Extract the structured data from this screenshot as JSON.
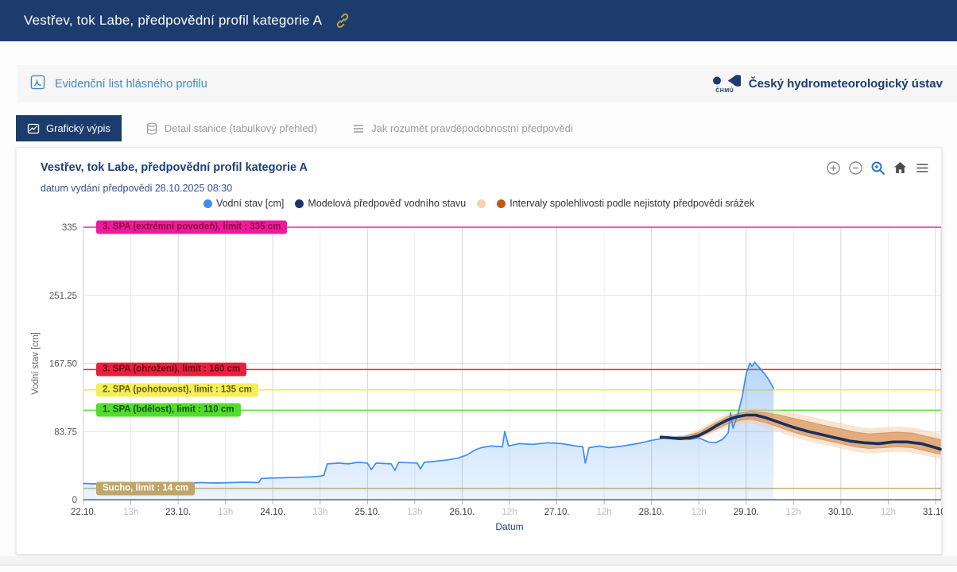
{
  "header": {
    "title": "Vestřev, tok Labe, předpovědní profil kategorie A",
    "link_icon_color": "#c9a43e"
  },
  "subheader": {
    "pdf_link": "Evidenční list hlásného profilu",
    "org_abbr": "ČHMÚ",
    "org_name": "Český hydrometeorologický ústav"
  },
  "tabs": [
    {
      "label": "Grafický výpis",
      "active": true
    },
    {
      "label": "Detail stanice (tabulkový přehled)",
      "active": false
    },
    {
      "label": "Jak rozumět pravděpodobnostní předpovědi",
      "active": false
    }
  ],
  "chart_header": {
    "title": "Vestřev, tok Labe, předpovědní profil kategorie A",
    "subtitle": "datum vydání předpovědi 28.10.2025 08:30",
    "toolbar_icons": [
      "zoom-in",
      "zoom-out",
      "box-zoom",
      "home",
      "menu"
    ]
  },
  "chart_data": {
    "type": "line",
    "title": "Vestřev, tok Labe, předpovědní profil kategorie A",
    "subtitle": "datum vydání předpovědi 28.10.2025 08:30",
    "xlabel": "Datum",
    "ylabel": "Vodní stav [cm]",
    "ylim": [
      0,
      335
    ],
    "grid": true,
    "legend_position": "top-center",
    "yticks": [
      {
        "v": 0,
        "label": "0"
      },
      {
        "v": 83.75,
        "label": "83.75"
      },
      {
        "v": 167.5,
        "label": "167.50"
      },
      {
        "v": 251.25,
        "label": "251.25"
      },
      {
        "v": 335,
        "label": "335"
      }
    ],
    "xticks": [
      {
        "label": "22.10.",
        "major": true
      },
      {
        "label": "13h",
        "major": false
      },
      {
        "label": "23.10.",
        "major": true
      },
      {
        "label": "13h",
        "major": false
      },
      {
        "label": "24.10.",
        "major": true
      },
      {
        "label": "13h",
        "major": false
      },
      {
        "label": "25.10.",
        "major": true
      },
      {
        "label": "13h",
        "major": false
      },
      {
        "label": "26.10.",
        "major": true
      },
      {
        "label": "12h",
        "major": false
      },
      {
        "label": "27.10.",
        "major": true
      },
      {
        "label": "12h",
        "major": false
      },
      {
        "label": "28.10.",
        "major": true
      },
      {
        "label": "12h",
        "major": false
      },
      {
        "label": "29.10.",
        "major": true
      },
      {
        "label": "12h",
        "major": false
      },
      {
        "label": "30.10.",
        "major": true
      },
      {
        "label": "12h",
        "major": false
      },
      {
        "label": "31.10.",
        "major": true
      }
    ],
    "limits": [
      {
        "value": 335,
        "label": "3. SPA (extrémní povodeň), limit : 335 cm",
        "line": "#ef1a9b",
        "bg": "#ef1a9b",
        "text": "#8a0f3d"
      },
      {
        "value": 160,
        "label": "3. SPA (ohrožení), limit : 160 cm",
        "line": "#e01a3c",
        "bg": "#e8203f",
        "text": "#66040f"
      },
      {
        "value": 135,
        "label": "2. SPA (pohotovost), limit : 135 cm",
        "line": "#f0ee4a",
        "bg": "#f5ef56",
        "text": "#6b5b10"
      },
      {
        "value": 110,
        "label": "1. SPA (bdělost), limit : 110 cm",
        "line": "#56d92e",
        "bg": "#52dd2e",
        "text": "#174d07"
      },
      {
        "value": 14,
        "label": "Sucho, limit : 14 cm",
        "line": "#c9af6d",
        "bg": "#bfa568",
        "text": "#ffffff"
      }
    ],
    "series": [
      {
        "name": "Vodní stav [cm]",
        "color": "#3d8ef0",
        "fill": true,
        "x": [
          0,
          0.2,
          0.45,
          0.5,
          0.55,
          0.7,
          0.75,
          0.8,
          1.0,
          1.3,
          1.6,
          1.9,
          2.2,
          2.5,
          2.8,
          3.1,
          3.4,
          3.7,
          3.76,
          3.9,
          4.2,
          4.5,
          4.8,
          5.0,
          5.08,
          5.15,
          5.4,
          5.6,
          5.8,
          6.0,
          6.08,
          6.18,
          6.5,
          6.58,
          6.66,
          7.05,
          7.12,
          7.2,
          7.4,
          7.7,
          7.9,
          8.1,
          8.27,
          8.4,
          8.6,
          8.85,
          8.9,
          8.98,
          9.2,
          9.5,
          9.8,
          10.1,
          10.4,
          10.55,
          10.6,
          10.68,
          10.9,
          11.1,
          11.4,
          11.7,
          12.0,
          12.3,
          12.6,
          12.8,
          13.0,
          13.2,
          13.35,
          13.5,
          13.62,
          13.67,
          13.72,
          13.82,
          13.92,
          14.0,
          14.08,
          14.12,
          14.18,
          14.3,
          14.45,
          14.58
        ],
        "y": [
          20,
          19.5,
          20,
          14,
          20,
          20.5,
          15,
          20,
          20,
          20.5,
          20,
          21,
          20.5,
          21,
          20.5,
          21,
          21.5,
          21,
          26,
          26.5,
          27,
          27.5,
          28,
          29,
          30,
          44,
          45,
          44,
          46,
          45,
          37,
          45,
          44,
          36,
          46,
          45,
          38,
          46,
          47,
          49,
          51,
          55,
          61,
          64,
          66,
          65,
          84,
          66,
          69,
          68,
          70,
          69,
          66,
          65,
          45,
          64,
          66,
          64,
          66,
          69,
          73,
          76,
          77,
          74,
          76,
          71,
          70,
          74,
          82,
          107,
          88,
          104,
          128,
          155,
          168,
          164,
          169,
          161,
          150,
          137
        ]
      },
      {
        "name": "Modelová předpověď vodního stavu",
        "color": "#16305f",
        "fill": false,
        "x": [
          12.2,
          12.4,
          12.6,
          12.8,
          13.0,
          13.2,
          13.4,
          13.6,
          13.8,
          14.0,
          14.2,
          14.4,
          14.6,
          14.8,
          15.0,
          15.3,
          15.6,
          15.9,
          16.2,
          16.5,
          16.8,
          17.1,
          17.4,
          17.7,
          18.0,
          18.1
        ],
        "y": [
          77,
          76,
          75,
          76,
          79,
          85,
          92,
          98,
          102,
          104,
          104,
          101,
          97,
          93,
          89,
          84,
          80,
          76,
          72,
          70,
          69,
          71,
          71,
          69,
          64,
          62
        ]
      }
    ],
    "bands": [
      {
        "name": "Intervaly spolehlivosti podle nejistoty předpovědi srážek (vnější)",
        "color": "#f2cfae",
        "x": [
          12.45,
          12.7,
          13.0,
          13.3,
          13.6,
          13.9,
          14.1,
          14.4,
          14.7,
          15.0,
          15.3,
          15.6,
          16.0,
          16.3,
          16.6,
          16.9,
          17.2,
          17.5,
          17.8,
          18.1
        ],
        "upper": [
          78,
          80,
          86,
          97,
          106,
          111,
          113,
          112,
          110,
          107,
          103,
          99,
          94,
          90,
          88,
          89,
          90,
          89,
          85,
          81
        ],
        "lower": [
          74,
          72,
          75,
          82,
          89,
          93,
          94,
          89,
          83,
          77,
          72,
          68,
          63,
          59,
          57,
          58,
          59,
          58,
          54,
          50
        ]
      },
      {
        "name": "Intervaly spolehlivosti podle nejistoty předpovědi srážek (vnitřní)",
        "color": "#dd9e66",
        "x": [
          12.45,
          12.7,
          13.0,
          13.3,
          13.6,
          13.9,
          14.1,
          14.4,
          14.7,
          15.0,
          15.3,
          15.6,
          16.0,
          16.3,
          16.6,
          16.9,
          17.2,
          17.5,
          17.8,
          18.1
        ],
        "upper": [
          77,
          78,
          83,
          93,
          102,
          107,
          109,
          107,
          104,
          100,
          96,
          92,
          87,
          83,
          81,
          82,
          83,
          82,
          78,
          74
        ],
        "lower": [
          75,
          74,
          77,
          85,
          93,
          98,
          99,
          95,
          89,
          83,
          78,
          74,
          69,
          65,
          63,
          64,
          65,
          64,
          60,
          56
        ]
      }
    ],
    "legend": [
      {
        "label": "Vodní stav [cm]",
        "color": "#3d8ef0"
      },
      {
        "label": "Modelová předpověď vodního stavu",
        "color": "#1b3268"
      },
      {
        "label": "",
        "color": "#f6d2b4"
      },
      {
        "label": "Intervaly spolehlivosti podle nejistoty předpovědi srážek",
        "color": "#c15811"
      }
    ]
  }
}
